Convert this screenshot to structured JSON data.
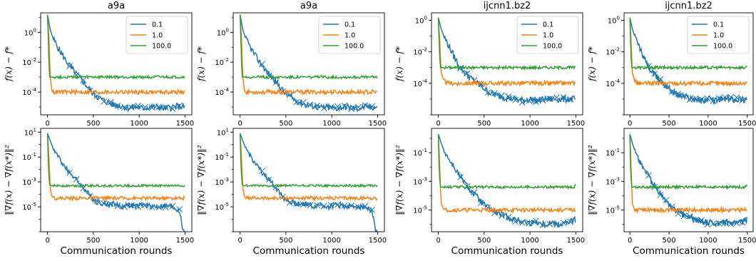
{
  "colors": {
    "0.1": "#1f77b4",
    "1.0": "#ff7f0e",
    "100.0": "#2ca02c"
  },
  "chart_data": [
    {
      "type": "line",
      "title": "a9a",
      "xlabel": "",
      "ylabel": "f(x) − f*",
      "yscale": "log",
      "ylim": [
        3e-06,
        20
      ],
      "xlim": [
        -75,
        1575
      ],
      "xticks": [
        "0",
        "500",
        "1000",
        "1500"
      ],
      "yticks": [
        {
          "b": "10",
          "e": "0",
          "v": 1
        },
        {
          "b": "10",
          "e": "-2",
          "v": 0.01
        },
        {
          "b": "10",
          "e": "-4",
          "v": 0.0001
        }
      ],
      "legend": "top-right",
      "grid": false,
      "series": [
        {
          "name": "0.1",
          "x": [
            0,
            30,
            60,
            120,
            180,
            240,
            300,
            360,
            420,
            480,
            540,
            600,
            660,
            720,
            800,
            880,
            960,
            1040,
            1120,
            1200,
            1280,
            1360,
            1440,
            1500
          ],
          "values": [
            15,
            1.5,
            0.4,
            0.08,
            0.02,
            0.006,
            0.002,
            0.0008,
            0.0003,
            0.0001,
            5e-05,
            3e-05,
            2e-05,
            1.4e-05,
            1.2e-05,
            9e-06,
            1e-05,
            8e-06,
            1e-05,
            1e-05,
            8e-06,
            1e-05,
            1e-05,
            1e-05
          ]
        },
        {
          "name": "1.0",
          "x": [
            0,
            15,
            30,
            50,
            100,
            500,
            1000,
            1500
          ],
          "values": [
            15,
            0.5,
            0.001,
            0.0001,
            0.0001,
            0.0001,
            0.0001,
            0.0001
          ]
        },
        {
          "name": "100.0",
          "x": [
            0,
            8,
            20,
            40,
            500,
            1000,
            1500
          ],
          "values": [
            15,
            0.5,
            0.001,
            0.001,
            0.001,
            0.001,
            0.001
          ]
        }
      ]
    },
    {
      "type": "line",
      "title": "a9a",
      "xlabel": "",
      "ylabel": "f(x) − f*",
      "yscale": "log",
      "ylim": [
        3e-06,
        20
      ],
      "xlim": [
        -75,
        1575
      ],
      "xticks": [
        "0",
        "500",
        "1000",
        "1500"
      ],
      "yticks": [
        {
          "b": "10",
          "e": "0",
          "v": 1
        },
        {
          "b": "10",
          "e": "-2",
          "v": 0.01
        },
        {
          "b": "10",
          "e": "-4",
          "v": 0.0001
        }
      ],
      "legend": "top-right",
      "grid": false,
      "series": [
        {
          "name": "0.1",
          "x": [
            0,
            30,
            60,
            120,
            180,
            240,
            300,
            360,
            420,
            480,
            540,
            600,
            660,
            720,
            800,
            880,
            960,
            1040,
            1120,
            1200,
            1280,
            1360,
            1440,
            1500
          ],
          "values": [
            15,
            1.5,
            0.4,
            0.08,
            0.02,
            0.006,
            0.002,
            0.0008,
            0.0003,
            0.0001,
            5e-05,
            3e-05,
            2e-05,
            1.4e-05,
            1.2e-05,
            9e-06,
            1e-05,
            8e-06,
            1e-05,
            1e-05,
            8e-06,
            1e-05,
            1e-05,
            1e-05
          ]
        },
        {
          "name": "1.0",
          "x": [
            0,
            15,
            30,
            50,
            100,
            500,
            1000,
            1500
          ],
          "values": [
            15,
            0.5,
            0.001,
            0.0001,
            0.0001,
            0.0001,
            0.0001,
            0.0001
          ]
        },
        {
          "name": "100.0",
          "x": [
            0,
            8,
            20,
            40,
            500,
            1000,
            1500
          ],
          "values": [
            15,
            0.5,
            0.001,
            0.001,
            0.001,
            0.001,
            0.001
          ]
        }
      ]
    },
    {
      "type": "line",
      "title": "ijcnn1.bz2",
      "xlabel": "",
      "ylabel": "f(x) − f*",
      "yscale": "log",
      "ylim": [
        1e-06,
        3
      ],
      "xlim": [
        -75,
        1575
      ],
      "xticks": [
        "0",
        "500",
        "1000",
        "1500"
      ],
      "yticks": [
        {
          "b": "10",
          "e": "0",
          "v": 1
        },
        {
          "b": "10",
          "e": "-2",
          "v": 0.01
        },
        {
          "b": "10",
          "e": "-4",
          "v": 0.0001
        }
      ],
      "legend": "top-right",
      "grid": false,
      "series": [
        {
          "name": "0.1",
          "x": [
            0,
            30,
            60,
            120,
            180,
            240,
            300,
            360,
            420,
            480,
            540,
            600,
            680,
            760,
            840,
            920,
            1000,
            1080,
            1160,
            1240,
            1320,
            1400,
            1480,
            1500
          ],
          "values": [
            1.5,
            0.3,
            0.1,
            0.02,
            0.004,
            0.001,
            0.0004,
            0.0002,
            0.0001,
            6e-05,
            3e-05,
            2e-05,
            1.5e-05,
            1.2e-05,
            1e-05,
            8e-06,
            1e-05,
            8e-06,
            1e-05,
            1e-05,
            1e-05,
            1e-05,
            1e-05,
            1e-05
          ]
        },
        {
          "name": "1.0",
          "x": [
            0,
            15,
            30,
            60,
            100,
            500,
            1000,
            1500
          ],
          "values": [
            1.5,
            0.05,
            0.0005,
            0.00015,
            0.0001,
            0.0001,
            0.0001,
            0.0001
          ]
        },
        {
          "name": "100.0",
          "x": [
            0,
            8,
            20,
            40,
            500,
            1000,
            1500
          ],
          "values": [
            1.5,
            0.05,
            0.001,
            0.001,
            0.001,
            0.001,
            0.001
          ]
        }
      ]
    },
    {
      "type": "line",
      "title": "ijcnn1.bz2",
      "xlabel": "",
      "ylabel": "f(x) − f*",
      "yscale": "log",
      "ylim": [
        1e-06,
        3
      ],
      "xlim": [
        -75,
        1575
      ],
      "xticks": [
        "0",
        "500",
        "1000",
        "1500"
      ],
      "yticks": [
        {
          "b": "10",
          "e": "0",
          "v": 1
        },
        {
          "b": "10",
          "e": "-2",
          "v": 0.01
        },
        {
          "b": "10",
          "e": "-4",
          "v": 0.0001
        }
      ],
      "legend": "top-right",
      "grid": false,
      "series": [
        {
          "name": "0.1",
          "x": [
            0,
            30,
            60,
            120,
            180,
            240,
            300,
            360,
            420,
            480,
            540,
            600,
            680,
            760,
            840,
            920,
            1000,
            1080,
            1160,
            1240,
            1320,
            1400,
            1480,
            1500
          ],
          "values": [
            1.5,
            0.3,
            0.1,
            0.02,
            0.004,
            0.001,
            0.0004,
            0.0002,
            0.0001,
            6e-05,
            3e-05,
            2e-05,
            1.5e-05,
            1.2e-05,
            1e-05,
            8e-06,
            1e-05,
            8e-06,
            1e-05,
            1e-05,
            1e-05,
            1e-05,
            1e-05,
            1e-05
          ]
        },
        {
          "name": "1.0",
          "x": [
            0,
            15,
            30,
            60,
            100,
            500,
            1000,
            1500
          ],
          "values": [
            1.5,
            0.05,
            0.0005,
            0.00015,
            0.0001,
            0.0001,
            0.0001,
            0.0001
          ]
        },
        {
          "name": "100.0",
          "x": [
            0,
            8,
            20,
            40,
            500,
            1000,
            1500
          ],
          "values": [
            1.5,
            0.05,
            0.001,
            0.001,
            0.001,
            0.001,
            0.001
          ]
        }
      ]
    },
    {
      "type": "line",
      "title": "",
      "xlabel": "Communication rounds",
      "ylabel": "‖∇f(x) − ∇f(x*)‖²",
      "yscale": "log",
      "ylim": [
        1e-07,
        20
      ],
      "xlim": [
        -75,
        1575
      ],
      "xticks": [
        "0",
        "500",
        "1000",
        "1500"
      ],
      "yticks": [
        {
          "b": "10",
          "e": "1",
          "v": 10
        },
        {
          "b": "10",
          "e": "-1",
          "v": 0.1
        },
        {
          "b": "10",
          "e": "-3",
          "v": 0.001
        },
        {
          "b": "10",
          "e": "-5",
          "v": 1e-05
        }
      ],
      "grid": false,
      "series": [
        {
          "name": "0.1",
          "x": [
            0,
            30,
            60,
            120,
            180,
            240,
            300,
            360,
            420,
            480,
            540,
            600,
            660,
            720,
            800,
            880,
            960,
            1040,
            1120,
            1200,
            1280,
            1360,
            1440,
            1480,
            1500
          ],
          "values": [
            8,
            2,
            0.5,
            0.1,
            0.02,
            0.006,
            0.002,
            0.0006,
            0.0002,
            5e-05,
            2.5e-05,
            2e-05,
            1.5e-05,
            2e-05,
            1e-05,
            1.6e-05,
            1e-05,
            1.4e-05,
            1.2e-05,
            1e-05,
            1.2e-05,
            1e-05,
            5e-06,
            1e-07,
            1e-07
          ]
        },
        {
          "name": "1.0",
          "x": [
            0,
            15,
            30,
            50,
            100,
            500,
            1000,
            1500
          ],
          "values": [
            8,
            0.1,
            0.0003,
            6e-05,
            5e-05,
            5e-05,
            5e-05,
            5e-05
          ]
        },
        {
          "name": "100.0",
          "x": [
            0,
            8,
            20,
            40,
            500,
            1000,
            1500
          ],
          "values": [
            8,
            0.05,
            0.0006,
            0.0005,
            0.0005,
            0.0005,
            0.0005
          ]
        }
      ]
    },
    {
      "type": "line",
      "title": "",
      "xlabel": "Communication rounds",
      "ylabel": "‖∇f(x) − ∇f(x*)‖²",
      "yscale": "log",
      "ylim": [
        1e-07,
        20
      ],
      "xlim": [
        -75,
        1575
      ],
      "xticks": [
        "0",
        "500",
        "1000",
        "1500"
      ],
      "yticks": [
        {
          "b": "10",
          "e": "1",
          "v": 10
        },
        {
          "b": "10",
          "e": "-1",
          "v": 0.1
        },
        {
          "b": "10",
          "e": "-3",
          "v": 0.001
        },
        {
          "b": "10",
          "e": "-5",
          "v": 1e-05
        }
      ],
      "grid": false,
      "series": [
        {
          "name": "0.1",
          "x": [
            0,
            30,
            60,
            120,
            180,
            240,
            300,
            360,
            420,
            480,
            540,
            600,
            660,
            720,
            800,
            880,
            960,
            1040,
            1120,
            1200,
            1280,
            1360,
            1440,
            1480,
            1500
          ],
          "values": [
            8,
            2,
            0.5,
            0.1,
            0.02,
            0.006,
            0.002,
            0.0006,
            0.0002,
            5e-05,
            2.5e-05,
            2e-05,
            1.5e-05,
            2e-05,
            1e-05,
            1.6e-05,
            1e-05,
            1.4e-05,
            1.2e-05,
            1e-05,
            1.2e-05,
            1e-05,
            5e-06,
            1e-07,
            1e-07
          ]
        },
        {
          "name": "1.0",
          "x": [
            0,
            15,
            30,
            50,
            100,
            500,
            1000,
            1500
          ],
          "values": [
            8,
            0.1,
            0.0003,
            6e-05,
            5e-05,
            5e-05,
            5e-05,
            5e-05
          ]
        },
        {
          "name": "100.0",
          "x": [
            0,
            8,
            20,
            40,
            500,
            1000,
            1500
          ],
          "values": [
            8,
            0.05,
            0.0006,
            0.0005,
            0.0005,
            0.0005,
            0.0005
          ]
        }
      ]
    },
    {
      "type": "line",
      "title": "",
      "xlabel": "Communication rounds",
      "ylabel": "‖∇f(x) − ∇f(x*)‖²",
      "yscale": "log",
      "ylim": [
        3e-07,
        5
      ],
      "xlim": [
        -75,
        1575
      ],
      "xticks": [
        "0",
        "500",
        "1000",
        "1500"
      ],
      "yticks": [
        {
          "b": "10",
          "e": "-1",
          "v": 0.1
        },
        {
          "b": "10",
          "e": "-3",
          "v": 0.001
        },
        {
          "b": "10",
          "e": "-5",
          "v": 1e-05
        }
      ],
      "grid": false,
      "series": [
        {
          "name": "0.1",
          "x": [
            0,
            30,
            60,
            120,
            180,
            240,
            300,
            360,
            420,
            480,
            540,
            600,
            680,
            760,
            840,
            920,
            1000,
            1080,
            1160,
            1240,
            1320,
            1400,
            1480,
            1500
          ],
          "values": [
            2,
            0.5,
            0.15,
            0.03,
            0.008,
            0.002,
            0.0006,
            0.0002,
            8e-05,
            3e-05,
            1.5e-05,
            8e-06,
            5e-06,
            3e-06,
            2e-06,
            1.6e-06,
            1.2e-06,
            1.4e-06,
            1e-06,
            1.3e-06,
            1e-06,
            1.2e-06,
            2e-06,
            2e-06
          ]
        },
        {
          "name": "1.0",
          "x": [
            0,
            15,
            30,
            60,
            100,
            500,
            1000,
            1500
          ],
          "values": [
            2,
            0.01,
            3e-05,
            1e-05,
            1e-05,
            1e-05,
            1e-05,
            1e-05
          ]
        },
        {
          "name": "100.0",
          "x": [
            0,
            8,
            20,
            40,
            500,
            1000,
            1480,
            1500
          ],
          "values": [
            2,
            0.01,
            0.0004,
            0.0004,
            0.0004,
            0.0004,
            0.0004,
            0.0007
          ]
        }
      ]
    },
    {
      "type": "line",
      "title": "",
      "xlabel": "Communication rounds",
      "ylabel": "‖∇f(x) − ∇f(x*)‖²",
      "yscale": "log",
      "ylim": [
        3e-07,
        5
      ],
      "xlim": [
        -75,
        1575
      ],
      "xticks": [
        "0",
        "500",
        "1000",
        "1500"
      ],
      "yticks": [
        {
          "b": "10",
          "e": "-1",
          "v": 0.1
        },
        {
          "b": "10",
          "e": "-3",
          "v": 0.001
        },
        {
          "b": "10",
          "e": "-5",
          "v": 1e-05
        }
      ],
      "grid": false,
      "series": [
        {
          "name": "0.1",
          "x": [
            0,
            30,
            60,
            120,
            180,
            240,
            300,
            360,
            420,
            480,
            540,
            600,
            680,
            760,
            840,
            920,
            1000,
            1080,
            1160,
            1240,
            1320,
            1400,
            1480,
            1500
          ],
          "values": [
            2,
            0.5,
            0.15,
            0.03,
            0.008,
            0.002,
            0.0006,
            0.0002,
            8e-05,
            3e-05,
            1.5e-05,
            8e-06,
            5e-06,
            3e-06,
            2e-06,
            1.6e-06,
            1.2e-06,
            1.4e-06,
            1e-06,
            1.3e-06,
            1e-06,
            1.2e-06,
            2e-06,
            2e-06
          ]
        },
        {
          "name": "1.0",
          "x": [
            0,
            15,
            30,
            60,
            100,
            500,
            1000,
            1500
          ],
          "values": [
            2,
            0.01,
            3e-05,
            1e-05,
            1e-05,
            1e-05,
            1e-05,
            1e-05
          ]
        },
        {
          "name": "100.0",
          "x": [
            0,
            8,
            20,
            40,
            500,
            1000,
            1480,
            1500
          ],
          "values": [
            2,
            0.01,
            0.0004,
            0.0004,
            0.0004,
            0.0004,
            0.0004,
            0.0007
          ]
        }
      ]
    }
  ]
}
